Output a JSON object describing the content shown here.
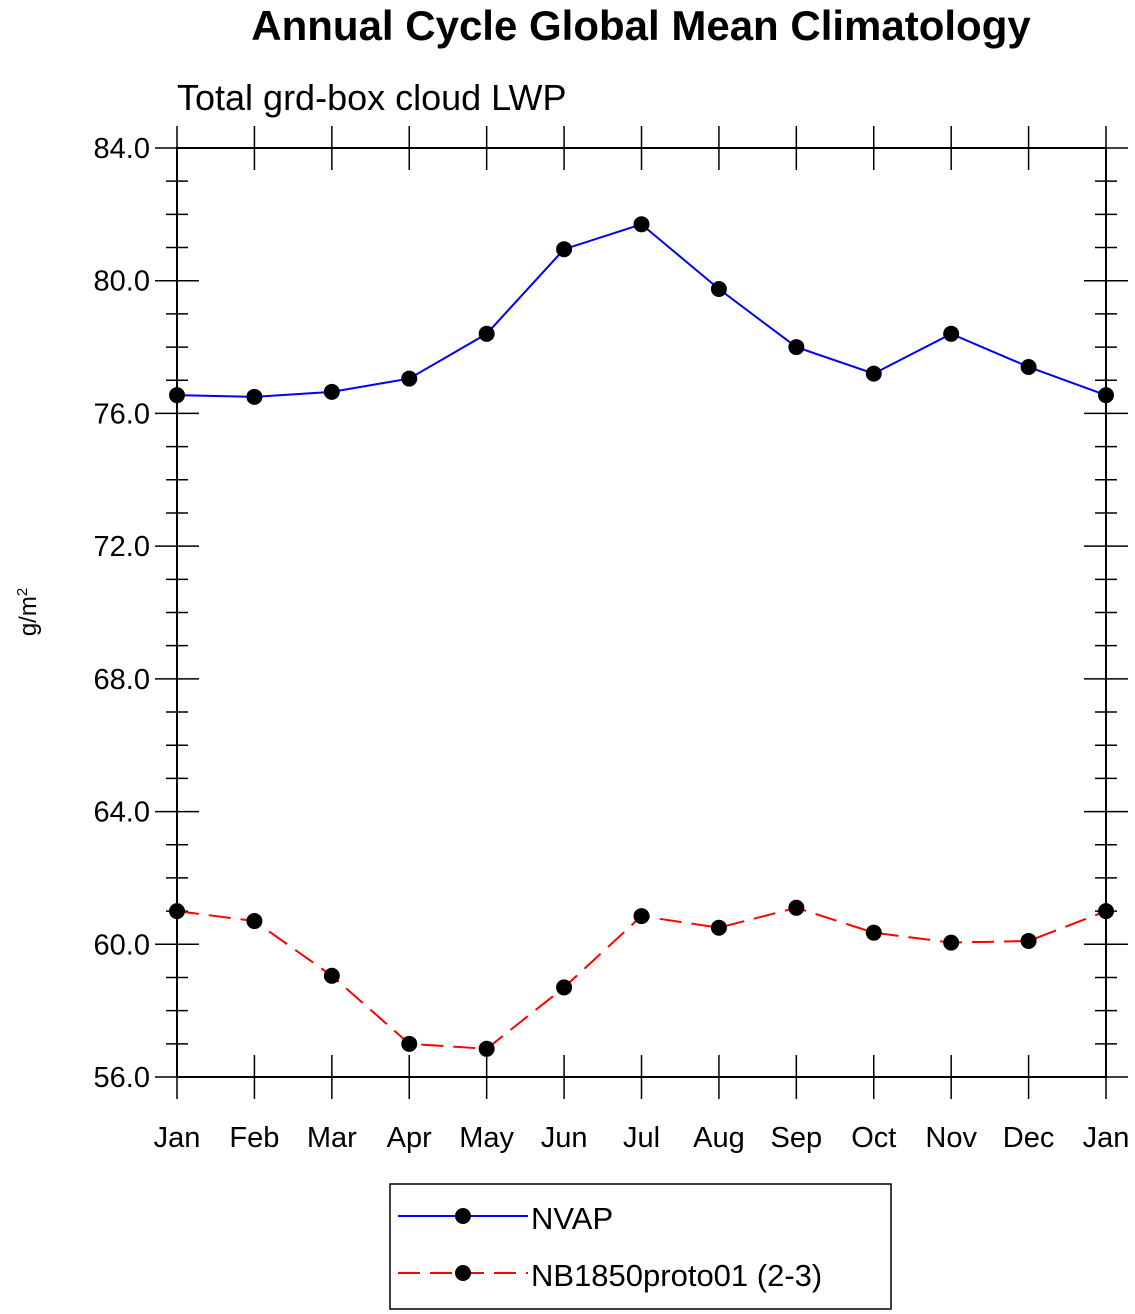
{
  "chart_data": {
    "type": "line",
    "title": "Annual Cycle Global Mean Climatology",
    "subtitle": "Total grd-box cloud LWP",
    "ylabel_base": "g/m",
    "ylabel_sup": "2",
    "categories": [
      "Jan",
      "Feb",
      "Mar",
      "Apr",
      "May",
      "Jun",
      "Jul",
      "Aug",
      "Sep",
      "Oct",
      "Nov",
      "Dec",
      "Jan"
    ],
    "ylim": [
      56.0,
      84.0
    ],
    "yticks": [
      "84.0",
      "80.0",
      "76.0",
      "72.0",
      "68.0",
      "64.0",
      "60.0",
      "56.0"
    ],
    "grid": false,
    "legend_placement": "bottom-center",
    "series": [
      {
        "name": "NVAP",
        "color": "#0000ff",
        "dash": "solid",
        "marker": "filled-circle",
        "values": [
          76.55,
          76.5,
          76.65,
          77.05,
          78.4,
          80.95,
          81.7,
          79.75,
          78.0,
          77.2,
          78.4,
          77.4,
          76.55
        ]
      },
      {
        "name": "NB1850proto01 (2-3)",
        "color": "#ff0000",
        "dash": "dashed",
        "marker": "filled-circle",
        "values": [
          61.0,
          60.7,
          59.05,
          57.0,
          56.85,
          58.7,
          60.85,
          60.5,
          61.1,
          60.35,
          60.05,
          60.1,
          61.0
        ]
      }
    ]
  }
}
